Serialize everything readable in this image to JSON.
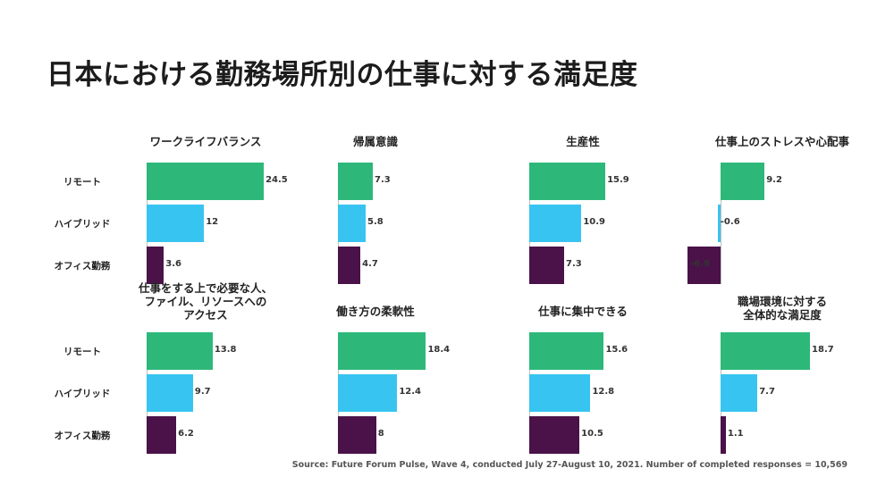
{
  "title": "日本における勤務場所別の仕事に対する満足度",
  "source": "Source: Future Forum Pulse, Wave 4, conducted July 27-August 10, 2021. Number of completed responses = 10,569",
  "colors": {
    "リモート": "#2db87a",
    "ハイブリッド": "#38c4f0",
    "オフィス勤務": "#4a1248"
  },
  "chart_data": {
    "type": "bar",
    "orientation": "horizontal",
    "categories": [
      "リモート",
      "ハイブリッド",
      "オフィス勤務"
    ],
    "panels": [
      {
        "title": "ワークライフバランス",
        "values": [
          24.5,
          12,
          3.6
        ]
      },
      {
        "title": "帰属意識",
        "values": [
          7.3,
          5.8,
          4.7
        ]
      },
      {
        "title": "生産性",
        "values": [
          15.9,
          10.9,
          7.3
        ]
      },
      {
        "title": "仕事上のストレスや心配事",
        "values": [
          9.2,
          -0.6,
          -6.9
        ]
      },
      {
        "title": "仕事をする上で必要な人、\nファイル、リソースへの\nアクセス",
        "values": [
          13.8,
          9.7,
          6.2
        ]
      },
      {
        "title": "働き方の柔軟性",
        "values": [
          18.4,
          12.4,
          8
        ]
      },
      {
        "title": "仕事に集中できる",
        "values": [
          15.6,
          12.8,
          10.5
        ]
      },
      {
        "title": "職場環境に対する\n全体的な満足度",
        "values": [
          18.7,
          7.7,
          1.1
        ]
      }
    ],
    "labels": {
      "p0": [
        "24.5",
        "12",
        "3.6"
      ],
      "p1": [
        "7.3",
        "5.8",
        "4.7"
      ],
      "p2": [
        "15.9",
        "10.9",
        "7.3"
      ],
      "p3": [
        "9.2",
        "-0.6",
        "-6.9"
      ],
      "p4": [
        "13.8",
        "9.7",
        "6.2"
      ],
      "p5": [
        "18.4",
        "12.4",
        "8"
      ],
      "p6": [
        "15.6",
        "12.8",
        "10.5"
      ],
      "p7": [
        "18.7",
        "7.7",
        "1.1"
      ]
    }
  }
}
